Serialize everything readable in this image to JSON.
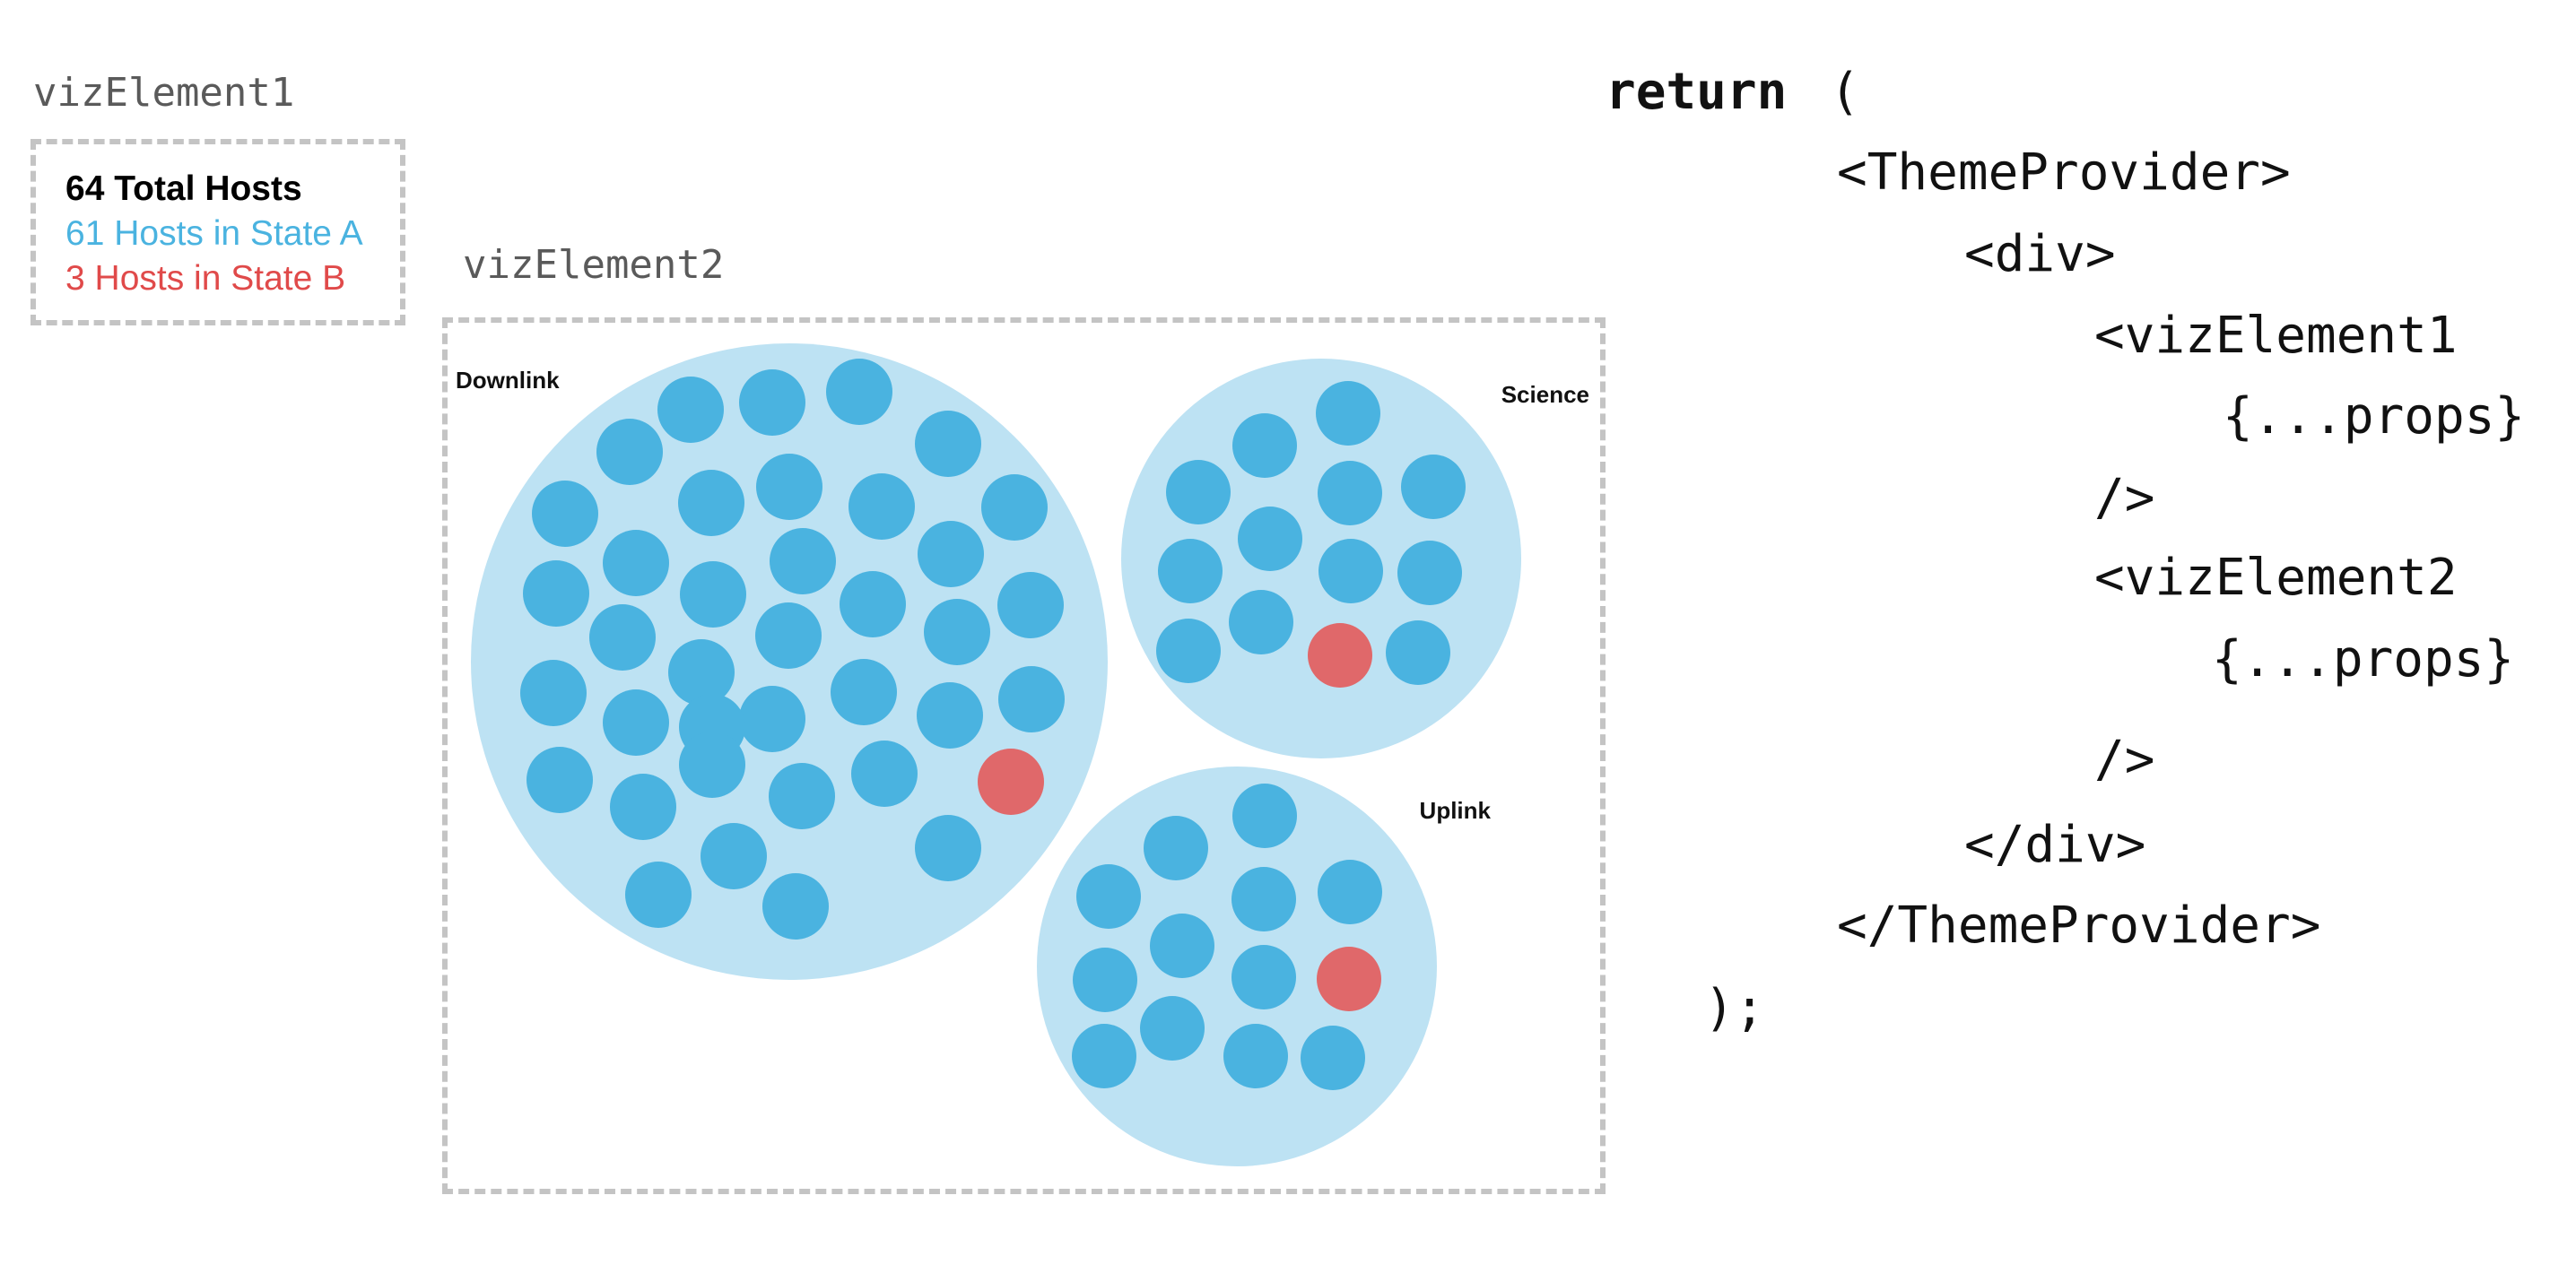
{
  "viz_element_1": {
    "tag": "vizElement1",
    "legend": {
      "total": "64 Total Hosts",
      "state_a": "61 Hosts in State A",
      "state_b": "3 Hosts in State B"
    }
  },
  "viz_element_2": {
    "tag": "vizElement2"
  },
  "colors": {
    "state_a": "#4ab3e0",
    "state_b": "#e0686a",
    "group_fill": "#bde2f3",
    "dashed_border": "#c4c4c4",
    "tag_text": "#5a5a5a"
  },
  "chart_data": {
    "type": "packed-circles",
    "groups": [
      {
        "name": "Downlink",
        "state_a": 37,
        "state_b": 1
      },
      {
        "name": "Science",
        "state_a": 12,
        "state_b": 1
      },
      {
        "name": "Uplink",
        "state_a": 12,
        "state_b": 1
      }
    ]
  },
  "code": {
    "keyword_return": "return",
    "lines": [
      "(",
      "<ThemeProvider>",
      "<div>",
      "<vizElement1",
      "{...props}",
      "/>",
      "<vizElement2",
      "{...props}",
      "/>",
      "</div>",
      "</ThemeProvider>",
      ");"
    ]
  }
}
